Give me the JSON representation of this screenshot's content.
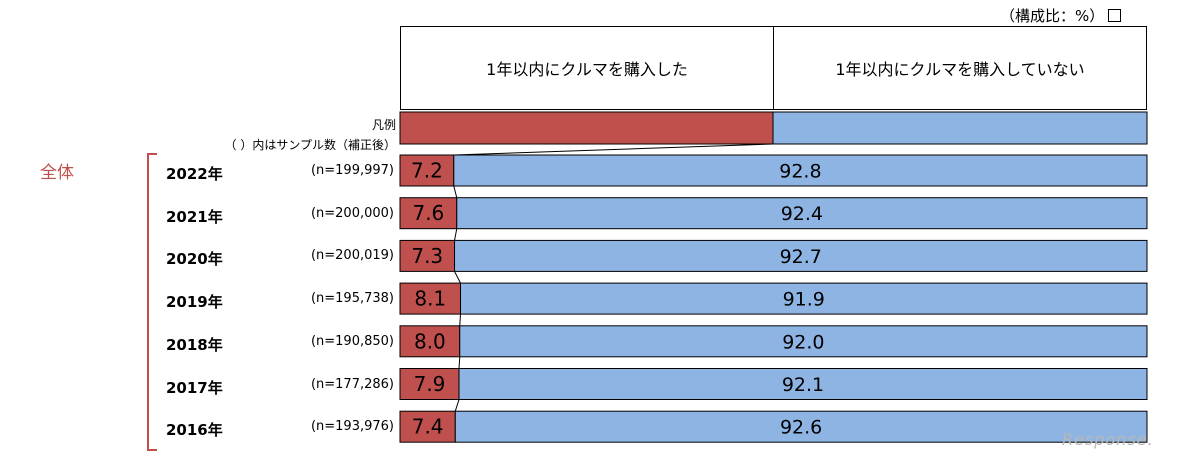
{
  "unit_note": "（構成比：%）",
  "legend": {
    "headers": [
      "1年以内にクルマを購入した",
      "1年以内にクルマを購入していない"
    ],
    "title_line1": "凡例",
    "title_line2": "（ ）内はサンプル数（補正後）",
    "colors": [
      "#c0504d",
      "#8eb4e3"
    ]
  },
  "group_label": "全体",
  "watermark": "Response.",
  "chart_data": {
    "type": "bar",
    "orientation": "horizontal-stacked-100",
    "categories": [
      "2022年",
      "2021年",
      "2020年",
      "2019年",
      "2018年",
      "2017年",
      "2016年"
    ],
    "sample_sizes": [
      "(n=199,997)",
      "(n=200,000)",
      "(n=200,019)",
      "(n=195,738)",
      "(n=190,850)",
      "(n=177,286)",
      "(n=193,976)"
    ],
    "series": [
      {
        "name": "1年以内にクルマを購入した",
        "color": "#c0504d",
        "values": [
          7.2,
          7.6,
          7.3,
          8.1,
          8.0,
          7.9,
          7.4
        ],
        "labels": [
          "7.2",
          "7.6",
          "7.3",
          "8.1",
          "8.0",
          "7.9",
          "7.4"
        ]
      },
      {
        "name": "1年以内にクルマを購入していない",
        "color": "#8eb4e3",
        "values": [
          92.8,
          92.4,
          92.7,
          91.9,
          92.0,
          92.1,
          92.6
        ],
        "labels": [
          "92.8",
          "92.4",
          "92.7",
          "91.9",
          "92.0",
          "92.1",
          "92.6"
        ]
      }
    ],
    "xlim": [
      0,
      100
    ]
  }
}
